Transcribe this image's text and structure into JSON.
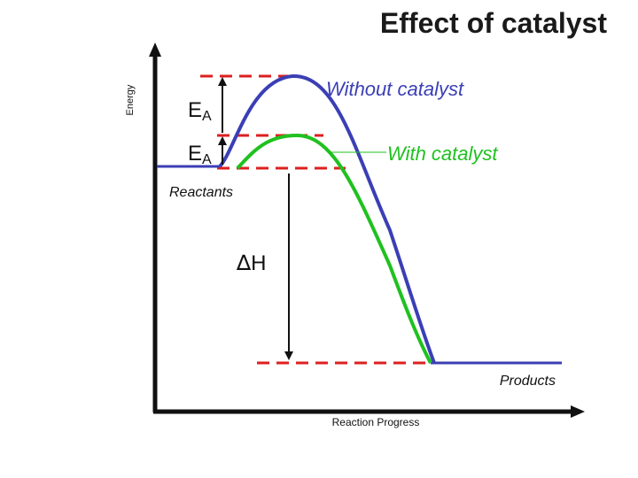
{
  "title": "Effect of catalyst",
  "axes": {
    "y_label": "Energy",
    "x_label": "Reaction Progress"
  },
  "labels": {
    "ea_main": "E",
    "ea_sub": "A",
    "without_catalyst": "Without catalyst",
    "with_catalyst": "With catalyst",
    "reactants": "Reactants",
    "products": "Products",
    "delta_symbol": "∆",
    "delta_h": "H"
  },
  "colors": {
    "without_catalyst_curve": "#3b3fb5",
    "with_catalyst_curve": "#1fc11f",
    "dashed_levels": "#dd1f1f",
    "axes": "#111111"
  }
}
